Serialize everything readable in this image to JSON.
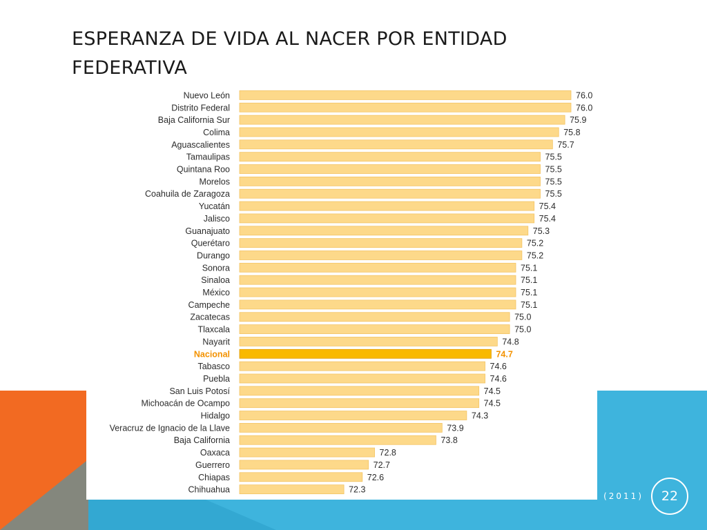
{
  "slide": {
    "title": "ESPERANZA DE VIDA AL NACER POR ENTIDAD FEDERATIVA",
    "footer": "(2011)",
    "page_number": "22"
  },
  "colors": {
    "bar": "#fdd98a",
    "bar_stroke": "#f3c464",
    "highlight_bar": "#f9b900",
    "highlight_text": "#f39200",
    "label_text": "#2b2b2b",
    "orange_block": "#f26a22",
    "blue_band": "#3eb4dd"
  },
  "chart_data": {
    "type": "bar",
    "orientation": "horizontal",
    "title": "",
    "xlabel": "",
    "ylabel": "",
    "categories": [
      "Nuevo León",
      "Distrito Federal",
      "Baja California Sur",
      "Colima",
      "Aguascalientes",
      "Tamaulipas",
      "Quintana Roo",
      "Morelos",
      "Coahuila de Zaragoza",
      "Yucatán",
      "Jalisco",
      "Guanajuato",
      "Querétaro",
      "Durango",
      "Sonora",
      "Sinaloa",
      "México",
      "Campeche",
      "Zacatecas",
      "Tlaxcala",
      "Nayarit",
      "Nacional",
      "Tabasco",
      "Puebla",
      "San Luis Potosí",
      "Michoacán de Ocampo",
      "Hidalgo",
      "Veracruz de Ignacio de la Llave",
      "Baja California",
      "Oaxaca",
      "Guerrero",
      "Chiapas",
      "Chihuahua"
    ],
    "values": [
      76.0,
      76.0,
      75.9,
      75.8,
      75.7,
      75.5,
      75.5,
      75.5,
      75.5,
      75.4,
      75.4,
      75.3,
      75.2,
      75.2,
      75.1,
      75.1,
      75.1,
      75.1,
      75.0,
      75.0,
      74.8,
      74.7,
      74.6,
      74.6,
      74.5,
      74.5,
      74.3,
      73.9,
      73.8,
      72.8,
      72.7,
      72.6,
      72.3
    ],
    "value_labels": [
      "76.0",
      "76.0",
      "75.9",
      "75.8",
      "75.7",
      "75.5",
      "75.5",
      "75.5",
      "75.5",
      "75.4",
      "75.4",
      "75.3",
      "75.2",
      "75.2",
      "75.1",
      "75.1",
      "75.1",
      "75.1",
      "75.0",
      "75.0",
      "74.8",
      "74.7",
      "74.6",
      "74.6",
      "74.5",
      "74.5",
      "74.3",
      "73.9",
      "73.8",
      "72.8",
      "72.7",
      "72.6",
      "72.3"
    ],
    "highlight": "Nacional",
    "xlim": [
      70.6,
      76.0
    ],
    "grid": false,
    "legend": "none"
  }
}
